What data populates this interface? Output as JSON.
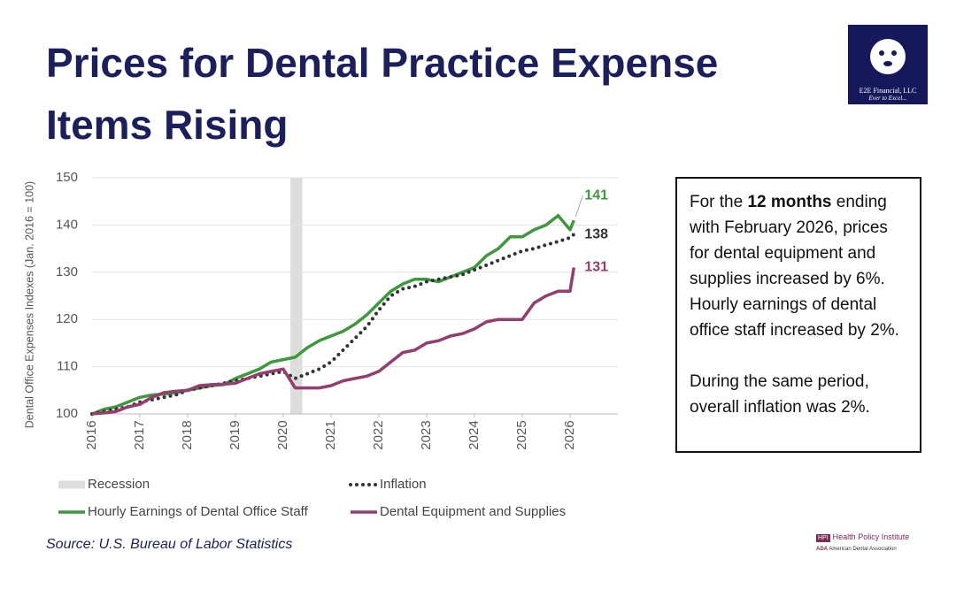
{
  "chart_data": {
    "type": "line",
    "title": "Prices for Dental Practice Expense Items Rising",
    "y_label": "Dental Office Expenses Indexes (Jan. 2016 = 100)",
    "source": "Source: U.S. Bureau of Labor Statistics",
    "x": [
      2016,
      2016.25,
      2016.5,
      2016.75,
      2017,
      2017.25,
      2017.5,
      2017.75,
      2018,
      2018.25,
      2018.5,
      2018.75,
      2019,
      2019.25,
      2019.5,
      2019.75,
      2020,
      2020.25,
      2020.5,
      2020.75,
      2021,
      2021.25,
      2021.5,
      2021.75,
      2022,
      2022.25,
      2022.5,
      2022.75,
      2023,
      2023.25,
      2023.5,
      2023.75,
      2024,
      2024.25,
      2024.5,
      2024.75,
      2025,
      2025.25,
      2025.5,
      2025.75,
      2026,
      2026.08
    ],
    "series": [
      {
        "name": "Hourly Earnings of Dental Office Staff",
        "color": "#3c9a3c",
        "style": "solid",
        "values": [
          100,
          101,
          101.5,
          102.5,
          103.5,
          104,
          104.2,
          104.5,
          105,
          105.5,
          106,
          106.2,
          107.5,
          108.5,
          109.5,
          111,
          111.5,
          112,
          114,
          115.5,
          116.5,
          117.5,
          119,
          121,
          123.5,
          126,
          127.5,
          128.5,
          128.5,
          128,
          129,
          130,
          131,
          133.5,
          135,
          137.5,
          137.5,
          139,
          140,
          142,
          139,
          141
        ]
      },
      {
        "name": "Inflation",
        "color": "#333333",
        "style": "dotted",
        "values": [
          100,
          100.5,
          101,
          101.5,
          102.5,
          103,
          103.5,
          104,
          105,
          105.5,
          106,
          106.5,
          107,
          107.5,
          108,
          108.5,
          109,
          107.5,
          108.5,
          109.5,
          111,
          113.5,
          116,
          118.5,
          122,
          125,
          126.5,
          127,
          128,
          128.5,
          129,
          129.5,
          130.5,
          131.5,
          132.5,
          133.5,
          134.5,
          135,
          135.8,
          136.5,
          137.3,
          138
        ]
      },
      {
        "name": "Dental Equipment and Supplies",
        "color": "#963c6e",
        "style": "solid",
        "values": [
          100,
          100.2,
          100.5,
          101.5,
          102,
          103.5,
          104.5,
          104.8,
          105,
          106,
          106.2,
          106.3,
          106.5,
          107.5,
          108.5,
          109,
          109.5,
          105.5,
          105.5,
          105.5,
          106,
          107,
          107.5,
          108,
          109,
          111,
          113,
          113.5,
          115,
          115.5,
          116.5,
          117,
          118,
          119.5,
          120,
          120,
          120,
          123.5,
          125,
          126,
          126,
          131
        ]
      }
    ],
    "recession": {
      "name": "Recession",
      "start": 2020.15,
      "end": 2020.4,
      "color": "#dddddd"
    },
    "xlim": [
      2016,
      2027
    ],
    "xticks": [
      2016,
      2017,
      2018,
      2019,
      2020,
      2021,
      2022,
      2023,
      2024,
      2025,
      2026
    ],
    "ylim": [
      100,
      150
    ],
    "yticks": [
      100,
      110,
      120,
      130,
      140,
      150
    ],
    "grid": true
  },
  "note": {
    "lead": "For the",
    "bold": "12 months",
    "rest": "ending with February 2026, prices for dental equipment and supplies increased by 6%. Hourly earnings of dental office staff increased by 2%.",
    "second": "During the same period, overall inflation was 2%."
  },
  "logo": {
    "name": "E2E Financial, LLC",
    "motto": "Ever to Excel..."
  },
  "footer_logo": {
    "badge": "HPI",
    "name": "Health Policy Institute",
    "org_badge": "ADA",
    "org": "American Dental Association"
  }
}
